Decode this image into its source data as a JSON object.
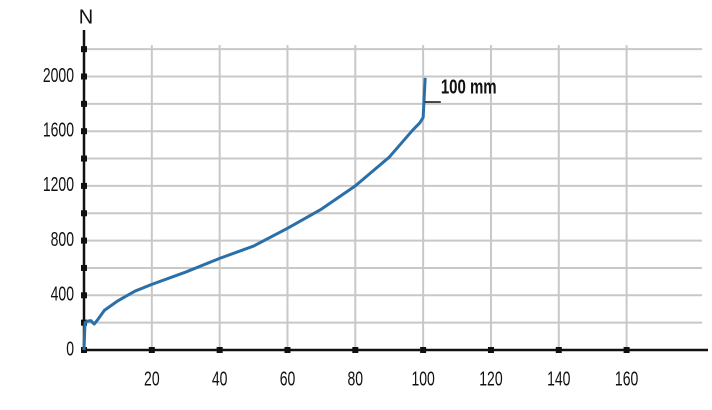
{
  "chart_data": {
    "type": "line",
    "y_label": "N",
    "annotation": "100 mm",
    "x": [
      0,
      0.3,
      1,
      2,
      3,
      4,
      6,
      10,
      15,
      20,
      30,
      40,
      50,
      60,
      70,
      80,
      90,
      97,
      99,
      100,
      100.6
    ],
    "series": [
      {
        "color": "#2a6fa8",
        "values": [
          0,
          200,
          210,
          215,
          190,
          220,
          290,
          360,
          430,
          480,
          570,
          670,
          760,
          890,
          1030,
          1200,
          1410,
          1610,
          1660,
          1700,
          1990
        ]
      }
    ],
    "xlim": [
      0,
      184
    ],
    "ylim": [
      0,
      2340
    ],
    "xticks": [
      20,
      40,
      60,
      80,
      100,
      120,
      140,
      160
    ],
    "yticks": [
      0,
      400,
      800,
      1200,
      1600,
      2000
    ],
    "yminor_ticks": [
      200,
      600,
      1000,
      1400,
      1800,
      2200
    ],
    "grid": true
  }
}
